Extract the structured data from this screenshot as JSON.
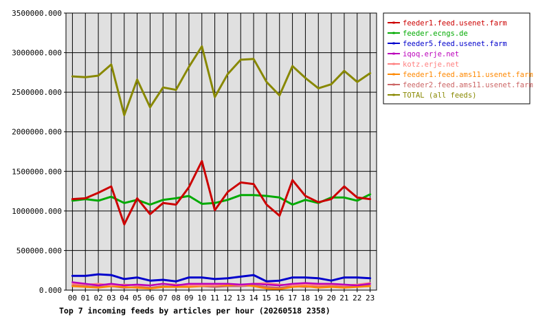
{
  "chart_data": {
    "type": "line",
    "title": "Top 7 incoming feeds by articles per hour (20260518 2358)",
    "xlabel": "",
    "ylabel": "",
    "ylim": [
      0,
      3500000
    ],
    "yticks": [
      0,
      500000,
      1000000,
      1500000,
      2000000,
      2500000,
      3000000,
      3500000
    ],
    "ytick_labels": [
      "0.000",
      "500000.000",
      "1000000.000",
      "1500000.000",
      "2000000.000",
      "2500000.000",
      "3000000.000",
      "3500000.000"
    ],
    "categories": [
      "00",
      "01",
      "02",
      "03",
      "04",
      "05",
      "06",
      "07",
      "08",
      "09",
      "10",
      "11",
      "12",
      "13",
      "14",
      "15",
      "16",
      "17",
      "18",
      "19",
      "20",
      "21",
      "22",
      "23"
    ],
    "grid": true,
    "legend_position": "right",
    "series": [
      {
        "name": "feeder1.feed.usenet.farm",
        "color": "#cc0000",
        "values": [
          1150000,
          1160000,
          1230000,
          1310000,
          830000,
          1160000,
          960000,
          1100000,
          1080000,
          1300000,
          1630000,
          1010000,
          1240000,
          1360000,
          1340000,
          1080000,
          940000,
          1390000,
          1190000,
          1110000,
          1150000,
          1310000,
          1170000,
          1150000
        ]
      },
      {
        "name": "feeder.ecngs.de",
        "color": "#00aa00",
        "values": [
          1130000,
          1150000,
          1130000,
          1180000,
          1100000,
          1140000,
          1080000,
          1140000,
          1160000,
          1190000,
          1090000,
          1100000,
          1140000,
          1200000,
          1200000,
          1190000,
          1170000,
          1080000,
          1140000,
          1100000,
          1170000,
          1170000,
          1130000,
          1210000
        ]
      },
      {
        "name": "feeder5.feed.usenet.farm",
        "color": "#0000cc",
        "values": [
          180000,
          180000,
          200000,
          190000,
          140000,
          160000,
          120000,
          130000,
          110000,
          160000,
          160000,
          140000,
          150000,
          170000,
          190000,
          110000,
          120000,
          160000,
          160000,
          150000,
          120000,
          160000,
          160000,
          150000
        ]
      },
      {
        "name": "iqoq.erje.net",
        "color": "#bb00bb",
        "values": [
          100000,
          80000,
          60000,
          80000,
          60000,
          70000,
          60000,
          80000,
          60000,
          80000,
          80000,
          80000,
          80000,
          70000,
          80000,
          70000,
          60000,
          80000,
          90000,
          80000,
          80000,
          70000,
          60000,
          80000
        ]
      },
      {
        "name": "kotz.erje.net",
        "color": "#ff8080",
        "values": [
          80000,
          70000,
          80000,
          60000,
          70000,
          60000,
          60000,
          80000,
          70000,
          60000,
          60000,
          60000,
          80000,
          60000,
          80000,
          90000,
          70000,
          60000,
          70000,
          60000,
          70000,
          60000,
          70000,
          90000
        ]
      },
      {
        "name": "feeder1.feed.ams11.usenet.farm",
        "color": "#ff8800",
        "values": [
          50000,
          40000,
          30000,
          50000,
          40000,
          30000,
          20000,
          40000,
          40000,
          40000,
          50000,
          60000,
          60000,
          70000,
          50000,
          20000,
          10000,
          40000,
          50000,
          30000,
          40000,
          30000,
          40000,
          50000
        ]
      },
      {
        "name": "feeder2.feed.ams11.usenet.farm",
        "color": "#cc6666",
        "values": [
          60000,
          50000,
          40000,
          50000,
          30000,
          40000,
          30000,
          50000,
          40000,
          50000,
          50000,
          40000,
          50000,
          50000,
          60000,
          40000,
          30000,
          50000,
          40000,
          50000,
          50000,
          40000,
          50000,
          60000
        ]
      },
      {
        "name": "TOTAL (all feeds)",
        "color": "#888800",
        "values": [
          2700000,
          2690000,
          2710000,
          2850000,
          2210000,
          2660000,
          2310000,
          2560000,
          2530000,
          2820000,
          3080000,
          2440000,
          2730000,
          2910000,
          2920000,
          2630000,
          2460000,
          2830000,
          2680000,
          2550000,
          2600000,
          2770000,
          2630000,
          2740000
        ]
      }
    ]
  }
}
